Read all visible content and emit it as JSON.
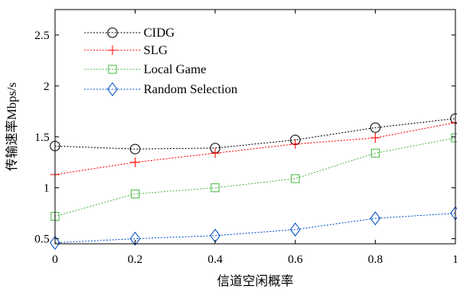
{
  "chart_data": {
    "type": "line",
    "xlabel": "信道空闲概率",
    "ylabel": "传输速率Mbps/s",
    "xlim": [
      0,
      1
    ],
    "ylim": [
      0.45,
      2.75
    ],
    "x_ticks": [
      0,
      0.2,
      0.4,
      0.6,
      0.8,
      1
    ],
    "x_tick_labels": [
      "0",
      "0.2",
      "0.4",
      "0.6",
      "0.8",
      "1"
    ],
    "y_ticks": [
      0.5,
      1,
      1.5,
      2,
      2.5
    ],
    "y_tick_labels": [
      "0.5",
      "1",
      "1.5",
      "2",
      "2.5"
    ],
    "grid": false,
    "legend_position": "top-left",
    "x": [
      0,
      0.2,
      0.4,
      0.6,
      0.8,
      1
    ],
    "series": [
      {
        "name": "CIDG",
        "values": [
          1.41,
          1.38,
          1.39,
          1.47,
          1.59,
          1.68
        ],
        "color": "#000000",
        "marker": "circle"
      },
      {
        "name": "SLG",
        "values": [
          1.13,
          1.25,
          1.34,
          1.43,
          1.49,
          1.64
        ],
        "color": "#ff0000",
        "marker": "plus"
      },
      {
        "name": "Local Game",
        "values": [
          0.72,
          0.94,
          1.0,
          1.09,
          1.34,
          1.49
        ],
        "color": "#4db848",
        "marker": "square"
      },
      {
        "name": "Random Selection",
        "values": [
          0.46,
          0.5,
          0.53,
          0.59,
          0.7,
          0.75
        ],
        "color": "#0050c8",
        "marker": "diamond"
      }
    ]
  }
}
